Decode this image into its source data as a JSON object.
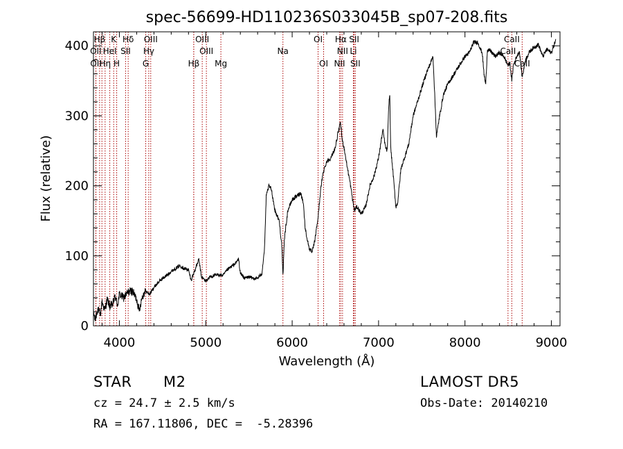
{
  "chart_data": {
    "type": "line",
    "title": "spec-56699-HD110236S033045B_sp07-208.fits",
    "xlabel": "Wavelength (Å)",
    "ylabel": "Flux (relative)",
    "xlim": [
      3700,
      9100
    ],
    "ylim": [
      0,
      420
    ],
    "xticks": [
      4000,
      5000,
      6000,
      7000,
      8000,
      9000
    ],
    "yticks": [
      0,
      100,
      200,
      300,
      400
    ],
    "grid": false,
    "line_color": "#000000",
    "marker_color": "#aa0000",
    "lines": [
      {
        "label": "Hβ",
        "x": 3771,
        "row": 0
      },
      {
        "label": "K",
        "x": 3934,
        "row": 0
      },
      {
        "label": "Hδ",
        "x": 4102,
        "row": 0
      },
      {
        "label": "OIII",
        "x": 4363,
        "row": 0
      },
      {
        "label": "OIII",
        "x": 4959,
        "row": 0
      },
      {
        "label": "OI",
        "x": 6300,
        "row": 0
      },
      {
        "label": "Hα",
        "x": 6563,
        "row": 0
      },
      {
        "label": "SII",
        "x": 6717,
        "row": 0
      },
      {
        "label": "CaII",
        "x": 8542,
        "row": 0
      },
      {
        "label": "OII",
        "x": 3727,
        "row": 1
      },
      {
        "label": "HeI",
        "x": 3889,
        "row": 1
      },
      {
        "label": "SII",
        "x": 4072,
        "row": 1
      },
      {
        "label": "Hγ",
        "x": 4340,
        "row": 1
      },
      {
        "label": "OIII",
        "x": 5007,
        "row": 1
      },
      {
        "label": "Na",
        "x": 5893,
        "row": 1
      },
      {
        "label": "NII",
        "x": 6583,
        "row": 1
      },
      {
        "label": "Li",
        "x": 6708,
        "row": 1
      },
      {
        "label": "CaII",
        "x": 8498,
        "row": 1
      },
      {
        "label": "OII",
        "x": 3729,
        "row": 2
      },
      {
        "label": "Hη",
        "x": 3835,
        "row": 2
      },
      {
        "label": "H",
        "x": 3969,
        "row": 2
      },
      {
        "label": "G",
        "x": 4305,
        "row": 2
      },
      {
        "label": "Hβ",
        "x": 4861,
        "row": 2
      },
      {
        "label": "Mg",
        "x": 5175,
        "row": 2
      },
      {
        "label": "OI",
        "x": 6364,
        "row": 2
      },
      {
        "label": "NII",
        "x": 6548,
        "row": 2
      },
      {
        "label": "SII",
        "x": 6731,
        "row": 2
      },
      {
        "label": "CaII",
        "x": 8662,
        "row": 2
      }
    ],
    "extra_marker_lines": [
      3798,
      4861
    ],
    "spectrum_nodes": [
      [
        3700,
        20
      ],
      [
        3720,
        8
      ],
      [
        3750,
        25
      ],
      [
        3780,
        15
      ],
      [
        3800,
        35
      ],
      [
        3830,
        22
      ],
      [
        3860,
        38
      ],
      [
        3890,
        28
      ],
      [
        3920,
        30
      ],
      [
        3950,
        42
      ],
      [
        3980,
        30
      ],
      [
        4000,
        45
      ],
      [
        4050,
        40
      ],
      [
        4100,
        48
      ],
      [
        4150,
        50
      ],
      [
        4200,
        38
      ],
      [
        4230,
        22
      ],
      [
        4260,
        40
      ],
      [
        4300,
        50
      ],
      [
        4350,
        45
      ],
      [
        4400,
        55
      ],
      [
        4450,
        62
      ],
      [
        4500,
        68
      ],
      [
        4550,
        72
      ],
      [
        4600,
        78
      ],
      [
        4650,
        82
      ],
      [
        4700,
        86
      ],
      [
        4750,
        82
      ],
      [
        4800,
        80
      ],
      [
        4830,
        65
      ],
      [
        4860,
        75
      ],
      [
        4900,
        88
      ],
      [
        4920,
        95
      ],
      [
        4950,
        70
      ],
      [
        5000,
        64
      ],
      [
        5050,
        70
      ],
      [
        5100,
        72
      ],
      [
        5150,
        73
      ],
      [
        5200,
        72
      ],
      [
        5250,
        80
      ],
      [
        5300,
        85
      ],
      [
        5350,
        90
      ],
      [
        5380,
        96
      ],
      [
        5400,
        75
      ],
      [
        5450,
        68
      ],
      [
        5500,
        70
      ],
      [
        5550,
        68
      ],
      [
        5600,
        68
      ],
      [
        5650,
        75
      ],
      [
        5680,
        110
      ],
      [
        5700,
        185
      ],
      [
        5730,
        200
      ],
      [
        5760,
        195
      ],
      [
        5800,
        165
      ],
      [
        5850,
        150
      ],
      [
        5880,
        115
      ],
      [
        5893,
        70
      ],
      [
        5910,
        125
      ],
      [
        5950,
        165
      ],
      [
        6000,
        180
      ],
      [
        6050,
        185
      ],
      [
        6100,
        190
      ],
      [
        6130,
        175
      ],
      [
        6150,
        140
      ],
      [
        6180,
        120
      ],
      [
        6200,
        110
      ],
      [
        6230,
        105
      ],
      [
        6260,
        120
      ],
      [
        6300,
        155
      ],
      [
        6330,
        195
      ],
      [
        6360,
        220
      ],
      [
        6400,
        235
      ],
      [
        6450,
        240
      ],
      [
        6500,
        255
      ],
      [
        6530,
        275
      ],
      [
        6560,
        290
      ],
      [
        6580,
        265
      ],
      [
        6600,
        255
      ],
      [
        6640,
        225
      ],
      [
        6670,
        205
      ],
      [
        6700,
        180
      ],
      [
        6720,
        165
      ],
      [
        6750,
        170
      ],
      [
        6800,
        160
      ],
      [
        6850,
        170
      ],
      [
        6900,
        200
      ],
      [
        6950,
        215
      ],
      [
        7000,
        240
      ],
      [
        7050,
        280
      ],
      [
        7080,
        255
      ],
      [
        7100,
        250
      ],
      [
        7120,
        320
      ],
      [
        7130,
        330
      ],
      [
        7140,
        255
      ],
      [
        7170,
        215
      ],
      [
        7200,
        170
      ],
      [
        7220,
        175
      ],
      [
        7260,
        225
      ],
      [
        7300,
        240
      ],
      [
        7350,
        260
      ],
      [
        7400,
        300
      ],
      [
        7450,
        320
      ],
      [
        7500,
        340
      ],
      [
        7550,
        360
      ],
      [
        7600,
        375
      ],
      [
        7630,
        385
      ],
      [
        7650,
        330
      ],
      [
        7670,
        270
      ],
      [
        7700,
        295
      ],
      [
        7750,
        330
      ],
      [
        7800,
        345
      ],
      [
        7850,
        355
      ],
      [
        7900,
        365
      ],
      [
        7950,
        375
      ],
      [
        8000,
        385
      ],
      [
        8050,
        390
      ],
      [
        8100,
        405
      ],
      [
        8150,
        405
      ],
      [
        8180,
        395
      ],
      [
        8200,
        390
      ],
      [
        8220,
        360
      ],
      [
        8240,
        345
      ],
      [
        8260,
        395
      ],
      [
        8300,
        392
      ],
      [
        8350,
        385
      ],
      [
        8400,
        390
      ],
      [
        8450,
        385
      ],
      [
        8498,
        372
      ],
      [
        8520,
        375
      ],
      [
        8542,
        350
      ],
      [
        8560,
        372
      ],
      [
        8600,
        385
      ],
      [
        8630,
        392
      ],
      [
        8662,
        355
      ],
      [
        8700,
        380
      ],
      [
        8750,
        392
      ],
      [
        8800,
        398
      ],
      [
        8850,
        402
      ],
      [
        8900,
        385
      ],
      [
        8950,
        395
      ],
      [
        9000,
        390
      ],
      [
        9050,
        408
      ]
    ]
  },
  "info": {
    "object_type": "STAR",
    "subclass": "M2",
    "survey": "LAMOST DR5",
    "cz": "cz = 24.7 ± 2.5 km/s",
    "obs_date": "Obs-Date: 20140210",
    "coords": "RA = 167.11806, DEC =  -5.28396"
  }
}
